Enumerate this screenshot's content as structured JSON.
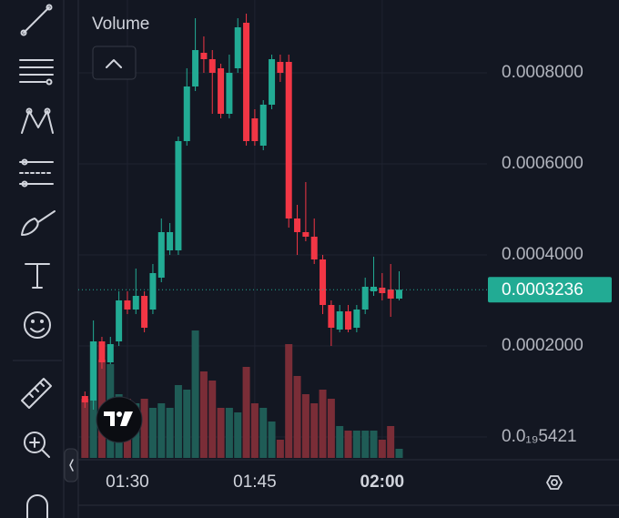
{
  "chart_data": {
    "type": "candlestick",
    "volume_label": "Volume",
    "categories": [
      null,
      null,
      null,
      null,
      null,
      "01:30",
      null,
      null,
      null,
      null,
      null,
      null,
      null,
      null,
      null,
      null,
      null,
      null,
      null,
      null,
      "01:45",
      null,
      null,
      null,
      null,
      null,
      null,
      null,
      null,
      null,
      null,
      null,
      null,
      null,
      null,
      "02:00",
      null,
      null
    ],
    "open": [
      9e-05,
      8e-05,
      0.00021,
      0.000164,
      0.00021,
      0.0003,
      0.00028,
      0.00031,
      0.00028,
      0.00035,
      0.00041,
      0.00041,
      0.00065,
      0.00077,
      0.000844,
      0.00083,
      0.00081,
      0.00071,
      0.00081,
      0.00091,
      0.0007,
      0.00064,
      0.00073,
      0.000824,
      0.000824,
      0.00048,
      0.00045,
      0.00044,
      0.00039,
      0.00029,
      0.000236,
      0.000276,
      0.00024,
      0.00028,
      0.00032,
      0.000328,
      0.000324,
      0.000304
    ],
    "high": [
      0.0001,
      0.000256,
      0.00022,
      0.00022,
      0.00032,
      0.00032,
      0.00037,
      0.00032,
      0.00038,
      0.00048,
      0.00047,
      0.00066,
      0.00081,
      0.00092,
      0.00088,
      0.00085,
      0.00082,
      0.00084,
      0.00092,
      0.00093,
      0.00072,
      0.00074,
      0.00084,
      0.00084,
      0.00084,
      0.00051,
      0.00056,
      0.00048,
      0.0004,
      0.0003,
      0.00029,
      0.00029,
      0.00029,
      0.00035,
      0.000396,
      0.00036,
      0.00038,
      0.000364
    ],
    "low": [
      6.4e-05,
      6e-05,
      0.00015,
      0.00016,
      0.0002,
      0.00027,
      0.00027,
      0.00023,
      0.00027,
      0.00034,
      0.0004,
      0.0004,
      0.00064,
      0.00076,
      0.0008,
      0.00071,
      0.0007,
      0.0007,
      0.0008,
      0.00064,
      0.00064,
      0.00063,
      0.00072,
      0.00078,
      0.00046,
      0.0004,
      0.00043,
      0.00038,
      0.00027,
      0.0002,
      0.00023,
      0.00023,
      0.00023,
      0.00027,
      0.00031,
      0.0003,
      0.000264,
      0.0003
    ],
    "close": [
      7.6e-05,
      0.00021,
      0.000164,
      0.000204,
      0.0003,
      0.00028,
      0.00031,
      0.00024,
      0.00036,
      0.00045,
      0.00045,
      0.00065,
      0.00077,
      0.00085,
      0.00083,
      0.0008,
      0.00071,
      0.0008,
      0.0009,
      0.00065,
      0.00065,
      0.00073,
      0.00083,
      0.0008,
      0.00048,
      0.00045,
      0.00044,
      0.00039,
      0.00029,
      0.00024,
      0.000276,
      0.000236,
      0.00028,
      0.00033,
      0.00033,
      0.000316,
      0.000304,
      0.0003236
    ],
    "volume": [
      65,
      128,
      108,
      103,
      70,
      65,
      60,
      65,
      55,
      60,
      55,
      80,
      75,
      140,
      95,
      85,
      55,
      55,
      50,
      100,
      60,
      55,
      40,
      20,
      125,
      90,
      70,
      60,
      75,
      65,
      35,
      30,
      30,
      30,
      30,
      20,
      35,
      10
    ],
    "ylim": [
      -5e-05,
      0.00096
    ],
    "yticks": [
      {
        "value": 5.421e-20,
        "label": "0.0₁₉5421"
      },
      {
        "value": 0.0002,
        "label": "0.0002000"
      },
      {
        "value": 0.0004,
        "label": "0.0004000"
      },
      {
        "value": 0.0006,
        "label": "0.0006000"
      },
      {
        "value": 0.0008,
        "label": "0.0008000"
      }
    ],
    "last_price": 0.0003236,
    "up_color": "#22ab94",
    "down_color": "#f23645",
    "grid": true
  }
}
